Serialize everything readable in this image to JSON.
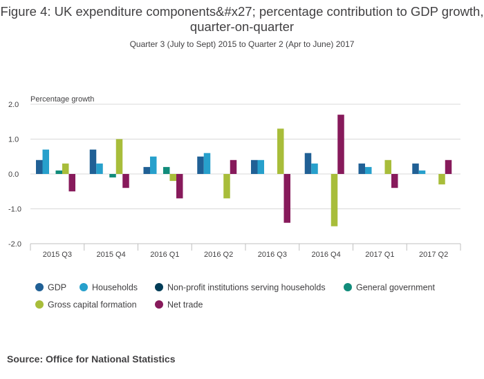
{
  "chart_data": {
    "type": "bar",
    "title": "Figure 4: UK expenditure components&#x27; percentage contribution to GDP growth, quarter-on-quarter",
    "subtitle": "Quarter 3 (July to Sept) 2015 to Quarter 2 (Apr to June) 2017",
    "ylabel": "Percentage growth",
    "xlabel": "",
    "ylim": [
      -2.0,
      2.0
    ],
    "yticks": [
      "2.0",
      "1.0",
      "0.0",
      "-1.0",
      "-2.0"
    ],
    "ytick_values": [
      2,
      1,
      0,
      -1,
      -2
    ],
    "grid": true,
    "legend_position": "bottom",
    "categories": [
      "2015 Q3",
      "2015 Q4",
      "2016 Q1",
      "2016 Q2",
      "2016 Q3",
      "2016 Q4",
      "2017 Q1",
      "2017 Q2"
    ],
    "series": [
      {
        "name": "GDP",
        "color": "#206095",
        "values": [
          0.4,
          0.7,
          0.2,
          0.5,
          0.4,
          0.6,
          0.3,
          0.3
        ]
      },
      {
        "name": "Households",
        "color": "#27a0cc",
        "values": [
          0.7,
          0.3,
          0.5,
          0.6,
          0.4,
          0.3,
          0.2,
          0.1
        ]
      },
      {
        "name": "Non-profit institutions serving households",
        "color": "#003c57",
        "values": [
          0,
          0,
          0,
          0,
          0,
          0,
          0,
          0
        ]
      },
      {
        "name": "General government",
        "color": "#118c7b",
        "values": [
          0.1,
          -0.1,
          0.2,
          0,
          0,
          0,
          0,
          0
        ]
      },
      {
        "name": "Gross capital formation",
        "color": "#a8bd3a",
        "values": [
          0.3,
          1.0,
          -0.2,
          -0.7,
          1.3,
          -1.5,
          0.4,
          -0.3
        ]
      },
      {
        "name": "Net trade",
        "color": "#871a5b",
        "values": [
          -0.5,
          -0.4,
          -0.7,
          0.4,
          -1.4,
          1.7,
          -0.4,
          0.4
        ]
      }
    ]
  },
  "source": "Source: Office for National Statistics"
}
